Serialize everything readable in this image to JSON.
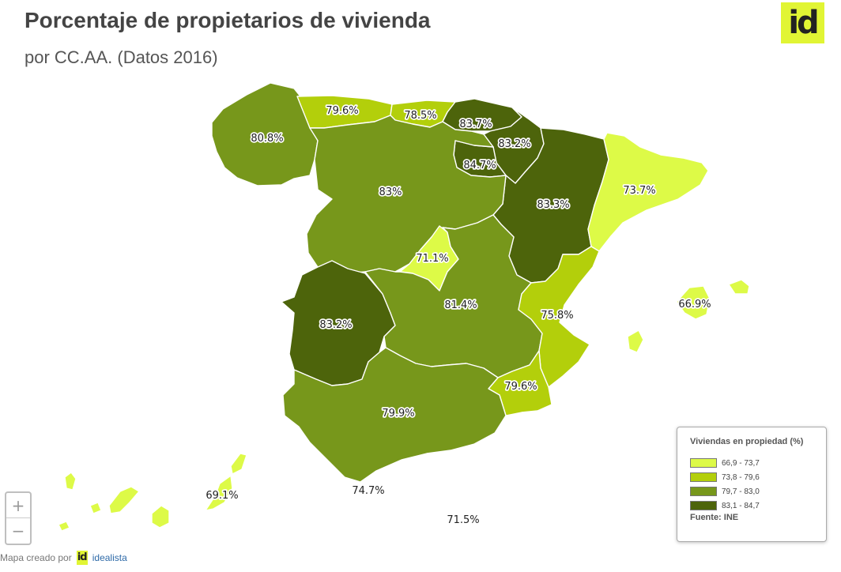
{
  "header": {
    "title": "Porcentaje de propietarios de vivienda",
    "subtitle": "por CC.AA. (Datos 2016)",
    "logo_text": "id"
  },
  "colors": {
    "class1": "#ddfa47",
    "class2": "#b3cf0b",
    "class3": "#77971b",
    "class4": "#4d640b"
  },
  "regions": {
    "galicia": "80.8%",
    "asturias": "79.6%",
    "cantabria": "78.5%",
    "pais_vasco": "83.7%",
    "navarra": "83.2%",
    "la_rioja": "84.7%",
    "aragon": "83.3%",
    "cataluna": "73.7%",
    "castilla_leon": "83%",
    "madrid": "71.1%",
    "castilla_la_mancha": "81.4%",
    "extremadura": "83.2%",
    "valencia": "75.8%",
    "murcia": "79.6%",
    "andalucia": "79.9%",
    "baleares": "66.9%",
    "canarias": "69.1%",
    "ceuta": "74.7%",
    "melilla": "71.5%"
  },
  "zoom": {
    "in_label": "+",
    "out_label": "−"
  },
  "legend": {
    "title": "Viviendas en propiedad (%)",
    "classes": [
      "66,9 - 73,7",
      "73,8 - 79,6",
      "79,7 - 83,0",
      "83,1 - 84,7"
    ],
    "source": "Fuente: INE"
  },
  "credit": {
    "prefix": "Mapa creado por",
    "logo_text": "id",
    "link": "idealista"
  }
}
